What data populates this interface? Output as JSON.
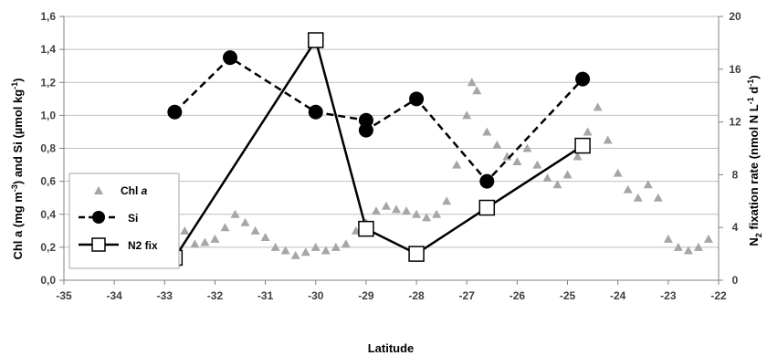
{
  "chart_data": {
    "type": "scatter",
    "xlabel": "Latitude",
    "ylabel": "Chl a (mg m⁻³) and Si (µmol kg⁻¹)",
    "y2label": "N₂ fixation rate (nmol N L⁻¹ d⁻¹)",
    "xlim": [
      -35,
      -22
    ],
    "ylim": [
      0,
      1.6
    ],
    "y2lim": [
      0,
      20
    ],
    "xticks": [
      "-35",
      "-34",
      "-33",
      "-32",
      "-31",
      "-30",
      "-29",
      "-28",
      "-27",
      "-26",
      "-25",
      "-24",
      "-23",
      "-22"
    ],
    "yticks": [
      "0,0",
      "0,2",
      "0,4",
      "0,6",
      "0,8",
      "1,0",
      "1,2",
      "1,4",
      "1,6"
    ],
    "y2ticks": [
      "0",
      "4",
      "8",
      "12",
      "16",
      "20"
    ],
    "grid": "horizontal",
    "legend_position": "left",
    "series": [
      {
        "name": "Chl a",
        "style": "gray triangles",
        "color": "#a6a6a6",
        "axis": "left",
        "x": [
          -33.8,
          -33.6,
          -33.4,
          -33.2,
          -33.0,
          -32.9,
          -32.8,
          -32.6,
          -32.4,
          -32.2,
          -32.0,
          -31.8,
          -31.6,
          -31.4,
          -31.2,
          -31.0,
          -30.8,
          -30.6,
          -30.4,
          -30.2,
          -30.0,
          -29.8,
          -29.6,
          -29.4,
          -29.2,
          -29.0,
          -28.8,
          -28.6,
          -28.4,
          -28.2,
          -28.0,
          -27.8,
          -27.6,
          -27.4,
          -27.2,
          -27.0,
          -26.9,
          -26.8,
          -26.6,
          -26.4,
          -26.2,
          -26.0,
          -25.8,
          -25.6,
          -25.4,
          -25.2,
          -25.0,
          -24.8,
          -24.6,
          -24.4,
          -24.2,
          -24.0,
          -23.8,
          -23.6,
          -23.4,
          -23.2,
          -23.0,
          -22.8,
          -22.6,
          -22.4,
          -22.2
        ],
        "y": [
          0.15,
          0.14,
          0.14,
          0.15,
          0.2,
          0.3,
          0.25,
          0.3,
          0.22,
          0.23,
          0.25,
          0.32,
          0.4,
          0.35,
          0.3,
          0.26,
          0.2,
          0.18,
          0.15,
          0.17,
          0.2,
          0.18,
          0.2,
          0.22,
          0.3,
          0.35,
          0.42,
          0.45,
          0.43,
          0.42,
          0.4,
          0.38,
          0.4,
          0.48,
          0.7,
          1.0,
          1.2,
          1.15,
          0.9,
          0.82,
          0.75,
          0.72,
          0.8,
          0.7,
          0.62,
          0.58,
          0.64,
          0.75,
          0.9,
          1.05,
          0.85,
          0.65,
          0.55,
          0.5,
          0.58,
          0.5,
          0.25,
          0.2,
          0.18,
          0.2,
          0.25
        ]
      },
      {
        "name": "Si",
        "style": "dashed line with filled circles",
        "color": "#000000",
        "axis": "left",
        "x": [
          -32.8,
          -31.7,
          -30.0,
          -29.0,
          -29.0,
          -28.0,
          -26.6,
          -24.7
        ],
        "y": [
          1.02,
          1.35,
          1.02,
          0.97,
          0.91,
          1.1,
          0.6,
          1.22
        ]
      },
      {
        "name": "N2 fix",
        "style": "solid line with open squares",
        "color": "#000000",
        "axis": "right",
        "x": [
          -32.8,
          -30.0,
          -29.0,
          -28.0,
          -26.6,
          -24.7
        ],
        "y": [
          1.7,
          18.2,
          3.9,
          2.0,
          5.5,
          10.2
        ]
      }
    ]
  },
  "legend": {
    "chl_prefix": "Chl ",
    "chl_italic": "a",
    "si": "Si",
    "n2": "N2 fix"
  },
  "titles": {
    "x": "Latitude"
  }
}
